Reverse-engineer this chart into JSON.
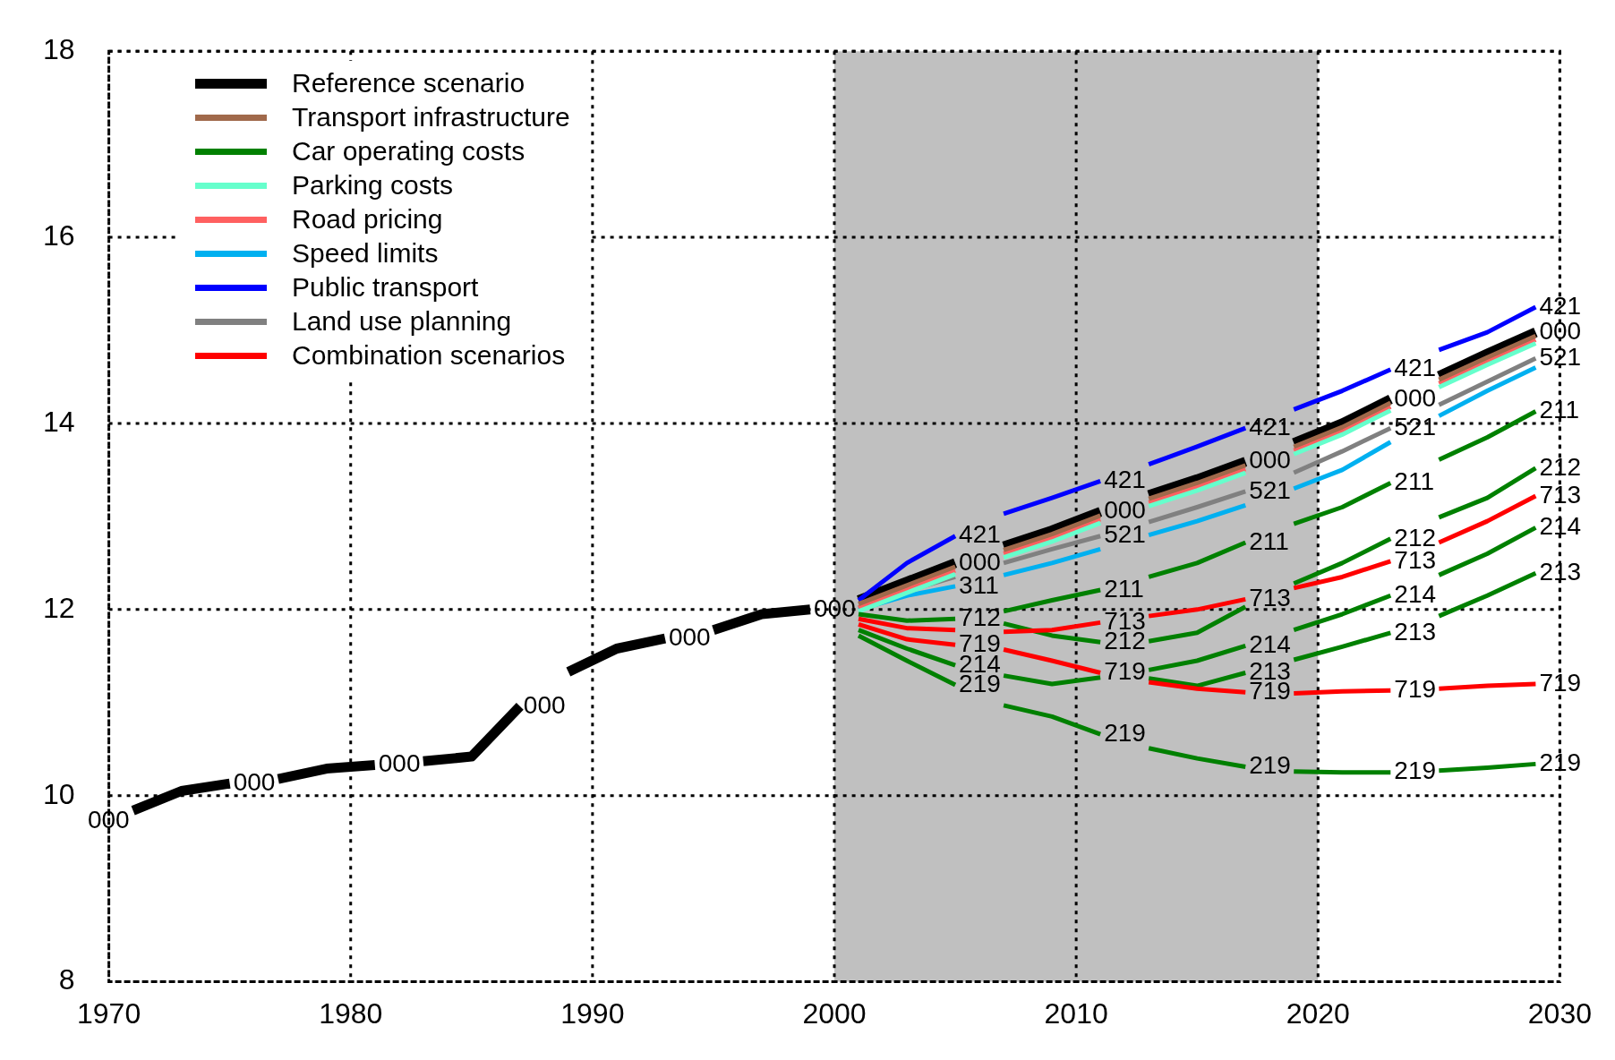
{
  "chart_data": {
    "type": "line",
    "xlim": [
      1970,
      2030
    ],
    "xticks": [
      1970,
      1980,
      1990,
      2000,
      2010,
      2020,
      2030
    ],
    "ylim": [
      8,
      18
    ],
    "yticks": [
      8,
      10,
      12,
      14,
      16,
      18
    ],
    "grid": true,
    "legend": "top left",
    "marker": "none",
    "line_style": "solid",
    "bands": [
      {
        "axis": "x",
        "from": 2000,
        "to": 2020,
        "color": "#c0c0c0"
      }
    ],
    "series": [
      {
        "name": "Reference scenario",
        "color": "#000000",
        "x": [
          1971,
          1973,
          1975,
          1976,
          1977,
          1979,
          1981,
          1982,
          1983,
          1985,
          1987,
          1988,
          1989,
          1991,
          1993,
          1994,
          1995,
          1997,
          1999,
          2000,
          2001,
          2003,
          2005,
          2006,
          2007,
          2009,
          2011,
          2012,
          2013,
          2015,
          2017,
          2018,
          2019,
          2021,
          2023,
          2024,
          2025,
          2027,
          2029
        ],
        "values": [
          9.84,
          10.05,
          10.13,
          null,
          10.18,
          10.29,
          10.33,
          null,
          10.37,
          10.42,
          10.96,
          null,
          11.33,
          11.58,
          11.69,
          null,
          11.78,
          11.95,
          12.0,
          null,
          12.1,
          12.3,
          12.5,
          null,
          12.68,
          12.85,
          13.05,
          null,
          13.23,
          13.4,
          13.59,
          null,
          13.79,
          14.0,
          14.26,
          null,
          14.51,
          14.75,
          14.98
        ]
      },
      {
        "name": "Transport infrastructure",
        "color": "#a0694b",
        "x": [
          2001,
          2003,
          2005,
          2006,
          2007,
          2009,
          2011,
          2012,
          2013,
          2015,
          2017,
          2018,
          2019,
          2021,
          2023,
          2024,
          2025,
          2027,
          2029
        ],
        "values": [
          12.06,
          12.26,
          12.46,
          null,
          12.64,
          12.81,
          13.01,
          null,
          13.19,
          13.36,
          13.55,
          null,
          13.75,
          13.96,
          14.22,
          null,
          14.47,
          14.71,
          14.94
        ]
      },
      {
        "name": "Car operating costs",
        "color": "#008000",
        "x": [
          2001,
          2003,
          2005,
          2006,
          2007,
          2009,
          2011,
          2012,
          2013,
          2015,
          2017,
          2018,
          2019,
          2021,
          2023,
          2024,
          2025,
          2027,
          2029
        ],
        "values": [
          11.95,
          11.88,
          11.9,
          null,
          11.98,
          12.1,
          12.21,
          null,
          12.35,
          12.5,
          12.72,
          null,
          12.92,
          13.1,
          13.36,
          null,
          13.61,
          13.85,
          14.13
        ]
      },
      {
        "name": "Parking costs",
        "color": "#66ffcc",
        "x": [
          2001,
          2003,
          2005,
          2006,
          2007,
          2009,
          2011,
          2012,
          2013,
          2015,
          2017,
          2018,
          2019,
          2021,
          2023,
          2024,
          2025,
          2027,
          2029
        ],
        "values": [
          11.98,
          12.18,
          12.38,
          null,
          12.56,
          12.73,
          12.93,
          null,
          13.11,
          13.28,
          13.47,
          null,
          13.67,
          13.88,
          14.14,
          null,
          14.39,
          14.63,
          14.86
        ]
      },
      {
        "name": "Road pricing",
        "color": "#ff6060",
        "x": [
          2001,
          2003,
          2005,
          2006,
          2007,
          2009,
          2011,
          2012,
          2013,
          2015,
          2017,
          2018,
          2019,
          2021,
          2023,
          2024,
          2025,
          2027,
          2029
        ],
        "values": [
          12.02,
          12.22,
          12.42,
          null,
          12.6,
          12.77,
          12.97,
          null,
          13.15,
          13.32,
          13.51,
          null,
          13.71,
          13.92,
          14.18,
          null,
          14.43,
          14.67,
          14.9
        ]
      },
      {
        "name": "Speed limits",
        "color": "#00b0f0",
        "x": [
          2001,
          2003,
          2005,
          2006,
          2007,
          2009,
          2011,
          2012,
          2013,
          2015,
          2017,
          2018,
          2019,
          2021,
          2023,
          2024,
          2025,
          2027,
          2029
        ],
        "values": [
          12.0,
          12.15,
          12.25,
          null,
          12.37,
          12.5,
          12.65,
          null,
          12.8,
          12.95,
          13.12,
          null,
          13.3,
          13.5,
          13.8,
          null,
          14.08,
          14.35,
          14.6
        ]
      },
      {
        "name": "Public transport",
        "color": "#0000ff",
        "x": [
          2001,
          2003,
          2005,
          2006,
          2007,
          2009,
          2011,
          2012,
          2013,
          2015,
          2017,
          2018,
          2019,
          2021,
          2023,
          2024,
          2025,
          2027,
          2029
        ],
        "values": [
          12.1,
          12.5,
          12.79,
          null,
          13.03,
          13.2,
          13.38,
          null,
          13.56,
          13.75,
          13.95,
          null,
          14.15,
          14.35,
          14.58,
          null,
          14.79,
          14.98,
          15.25
        ]
      },
      {
        "name": "Land use planning",
        "color": "#808080",
        "x": [
          2001,
          2003,
          2005,
          2006,
          2007,
          2009,
          2011,
          2012,
          2013,
          2015,
          2017,
          2018,
          2019,
          2021,
          2023,
          2024,
          2025,
          2027,
          2029
        ],
        "values": [
          12.02,
          12.2,
          12.35,
          null,
          12.5,
          12.65,
          12.79,
          null,
          12.94,
          13.1,
          13.27,
          null,
          13.47,
          13.7,
          13.95,
          null,
          14.2,
          14.45,
          14.7
        ]
      },
      {
        "name": "Combination scenarios",
        "color": "#ff0000",
        "x": [
          2001,
          2003,
          2005,
          2006,
          2007,
          2009,
          2011,
          2012,
          2013,
          2015,
          2017,
          2018,
          2019,
          2021,
          2023,
          2024,
          2025,
          2027,
          2029
        ],
        "values": [
          11.9,
          11.8,
          11.78,
          null,
          11.76,
          11.78,
          11.86,
          null,
          11.93,
          12.0,
          12.11,
          null,
          12.23,
          12.35,
          12.52,
          null,
          12.72,
          12.95,
          13.22
        ]
      },
      {
        "color": "#ff0000",
        "x": [
          2001,
          2003,
          2005,
          2006,
          2007,
          2009,
          2011,
          2012,
          2013,
          2015,
          2017,
          2018,
          2019,
          2021,
          2023,
          2024,
          2025,
          2027,
          2029
        ],
        "values": [
          11.84,
          11.68,
          11.62,
          null,
          11.57,
          11.45,
          11.32,
          null,
          11.22,
          11.15,
          11.11,
          null,
          11.1,
          11.12,
          11.13,
          null,
          11.15,
          11.18,
          11.2
        ]
      },
      {
        "color": "#008000",
        "x": [
          2007,
          2009,
          2011,
          2012,
          2013,
          2015,
          2017,
          2018,
          2019,
          2021,
          2023,
          2024,
          2025,
          2027,
          2029
        ],
        "values": [
          11.85,
          11.72,
          11.65,
          null,
          11.66,
          11.75,
          12.03,
          null,
          12.28,
          12.5,
          12.76,
          null,
          12.99,
          13.2,
          13.52
        ]
      },
      {
        "color": "#008000",
        "x": [
          2001,
          2003,
          2005,
          2006,
          2007,
          2009,
          2011,
          2012,
          2013,
          2015,
          2017,
          2018,
          2019,
          2021,
          2023,
          2024,
          2025,
          2027,
          2029
        ],
        "values": [
          11.78,
          11.58,
          11.4,
          null,
          11.29,
          11.2,
          11.27,
          null,
          11.35,
          11.45,
          11.61,
          null,
          11.78,
          11.95,
          12.15,
          null,
          12.37,
          12.6,
          12.88
        ]
      },
      {
        "color": "#008000",
        "x": [
          2013,
          2015,
          2017,
          2018,
          2019,
          2021,
          2023,
          2024,
          2025,
          2027,
          2029
        ],
        "values": [
          11.26,
          11.18,
          11.32,
          null,
          11.46,
          11.6,
          11.75,
          null,
          11.93,
          12.15,
          12.39
        ]
      },
      {
        "color": "#008000",
        "x": [
          2001,
          2003,
          2005,
          2006,
          2007,
          2009,
          2011,
          2012,
          2013,
          2015,
          2017,
          2018,
          2019,
          2021,
          2023,
          2024,
          2025,
          2027,
          2029
        ],
        "values": [
          11.72,
          11.45,
          11.19,
          null,
          10.97,
          10.85,
          10.66,
          null,
          10.51,
          10.4,
          10.31,
          null,
          10.26,
          10.25,
          10.25,
          null,
          10.27,
          10.3,
          10.34
        ]
      }
    ],
    "annotations": [
      {
        "text": "000",
        "x": 1971,
        "y": 9.84
      },
      {
        "text": "000",
        "x": 1975,
        "y": 10.13
      },
      {
        "text": "000",
        "x": 1981,
        "y": 10.33
      },
      {
        "text": "000",
        "x": 1987,
        "y": 10.96
      },
      {
        "text": "000",
        "x": 1993,
        "y": 11.69
      },
      {
        "text": "000",
        "x": 1999,
        "y": 12.0
      },
      {
        "text": "421",
        "x": 2005,
        "y": 12.79
      },
      {
        "text": "000",
        "x": 2005,
        "y": 12.5
      },
      {
        "text": "311",
        "x": 2005,
        "y": 12.25
      },
      {
        "text": "712",
        "x": 2005,
        "y": 11.9
      },
      {
        "text": "719",
        "x": 2005,
        "y": 11.62
      },
      {
        "text": "214",
        "x": 2005,
        "y": 11.4
      },
      {
        "text": "219",
        "x": 2005,
        "y": 11.19
      },
      {
        "text": "421",
        "x": 2011,
        "y": 13.38
      },
      {
        "text": "000",
        "x": 2011,
        "y": 13.05
      },
      {
        "text": "521",
        "x": 2011,
        "y": 12.79
      },
      {
        "text": "211",
        "x": 2011,
        "y": 12.21
      },
      {
        "text": "713",
        "x": 2011,
        "y": 11.86
      },
      {
        "text": "212",
        "x": 2011,
        "y": 11.65
      },
      {
        "text": "719",
        "x": 2011,
        "y": 11.32
      },
      {
        "text": "219",
        "x": 2011,
        "y": 10.66
      },
      {
        "text": "421",
        "x": 2017,
        "y": 13.95
      },
      {
        "text": "000",
        "x": 2017,
        "y": 13.59
      },
      {
        "text": "521",
        "x": 2017,
        "y": 13.27
      },
      {
        "text": "211",
        "x": 2017,
        "y": 12.72
      },
      {
        "text": "713",
        "x": 2017,
        "y": 12.11
      },
      {
        "text": "214",
        "x": 2017,
        "y": 11.61
      },
      {
        "text": "213",
        "x": 2017,
        "y": 11.32
      },
      {
        "text": "719",
        "x": 2017,
        "y": 11.11
      },
      {
        "text": "219",
        "x": 2017,
        "y": 10.31
      },
      {
        "text": "421",
        "x": 2023,
        "y": 14.58
      },
      {
        "text": "000",
        "x": 2023,
        "y": 14.26
      },
      {
        "text": "521",
        "x": 2023,
        "y": 13.95
      },
      {
        "text": "211",
        "x": 2023,
        "y": 13.36
      },
      {
        "text": "212",
        "x": 2023,
        "y": 12.76
      },
      {
        "text": "713",
        "x": 2023,
        "y": 12.52
      },
      {
        "text": "214",
        "x": 2023,
        "y": 12.15
      },
      {
        "text": "213",
        "x": 2023,
        "y": 11.75
      },
      {
        "text": "719",
        "x": 2023,
        "y": 11.13
      },
      {
        "text": "219",
        "x": 2023,
        "y": 10.25
      },
      {
        "text": "421",
        "x": 2029,
        "y": 15.25
      },
      {
        "text": "000",
        "x": 2029,
        "y": 14.98
      },
      {
        "text": "521",
        "x": 2029,
        "y": 14.7
      },
      {
        "text": "211",
        "x": 2029,
        "y": 14.13
      },
      {
        "text": "212",
        "x": 2029,
        "y": 13.52
      },
      {
        "text": "713",
        "x": 2029,
        "y": 13.22
      },
      {
        "text": "214",
        "x": 2029,
        "y": 12.88
      },
      {
        "text": "213",
        "x": 2029,
        "y": 12.39
      },
      {
        "text": "719",
        "x": 2029,
        "y": 11.2
      },
      {
        "text": "219",
        "x": 2029,
        "y": 10.34
      }
    ]
  }
}
